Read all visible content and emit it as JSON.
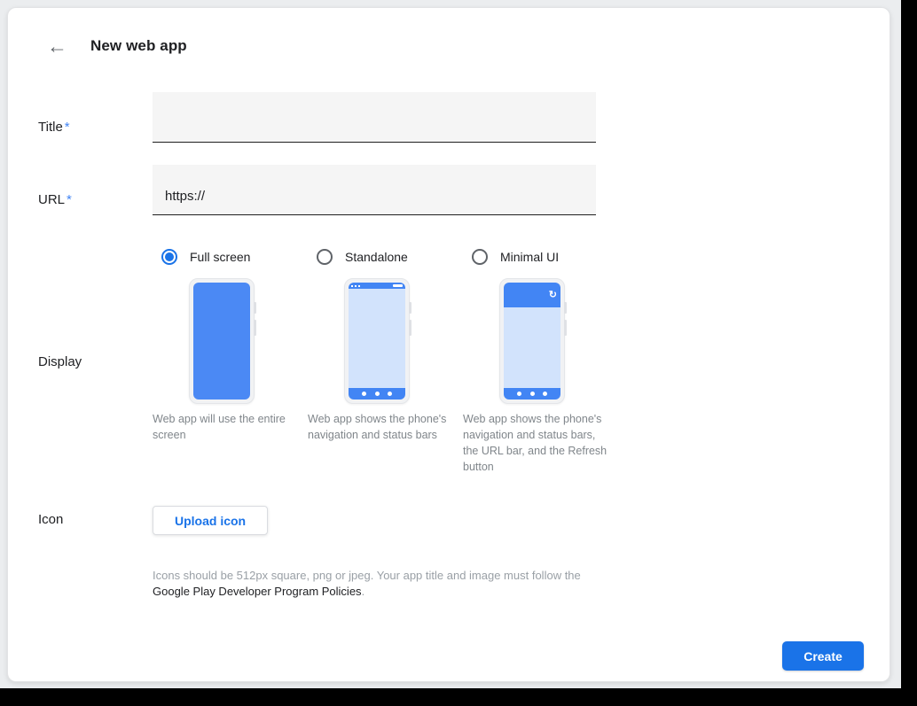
{
  "header": {
    "title": "New web app"
  },
  "icons": {
    "back_glyph": "←",
    "refresh_glyph": "↻"
  },
  "form": {
    "title_field": {
      "label": "Title",
      "required_marker": "*",
      "value": ""
    },
    "url_field": {
      "label": "URL",
      "required_marker": "*",
      "value": "https://"
    },
    "display_field": {
      "label": "Display",
      "options": [
        {
          "label": "Full screen",
          "selected": true,
          "description": "Web app will use the entire screen"
        },
        {
          "label": "Standalone",
          "selected": false,
          "description": "Web app shows the phone's navigation and status bars"
        },
        {
          "label": "Minimal UI",
          "selected": false,
          "description": "Web app shows the phone's navigation and status bars, the URL bar, and the Refresh button"
        }
      ]
    },
    "icon_field": {
      "label": "Icon",
      "upload_button_label": "Upload icon",
      "helper_text": "Icons should be 512px square, png or jpeg. Your app title and image must follow the ",
      "helper_link_text": "Google Play Developer Program Policies",
      "helper_suffix": "."
    }
  },
  "footer": {
    "create_button_label": "Create"
  },
  "colors": {
    "accent_blue": "#1a73e8",
    "required_asterisk_blue": "#4285f4",
    "phone_screen_blue": "#4b89f4",
    "phone_screen_light_blue": "#d2e3fc",
    "phone_bar_blue": "#4285f4"
  }
}
